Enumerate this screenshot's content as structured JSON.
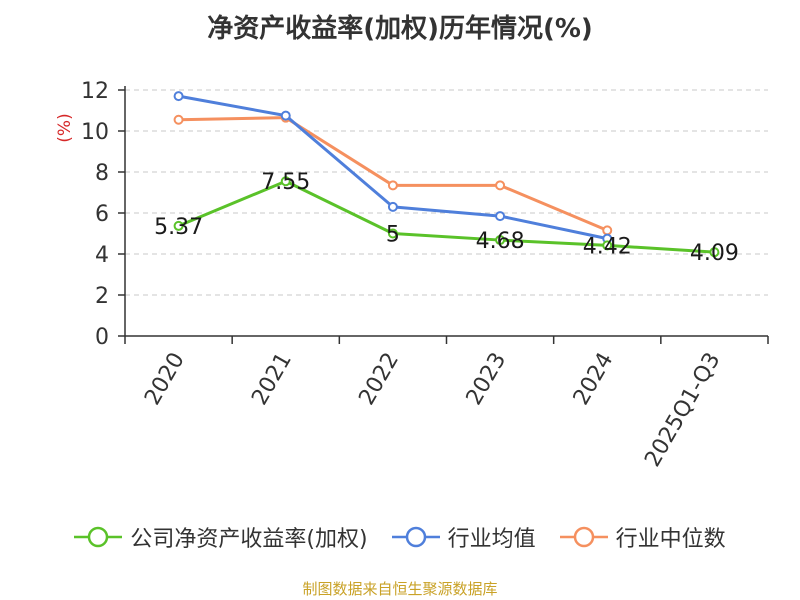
{
  "chart_data": {
    "type": "line",
    "title": "净资产收益率(加权)历年情况(%)",
    "ylabel": "(%)",
    "xlabel": "",
    "ylim": [
      0,
      12
    ],
    "yticks": [
      0,
      2,
      4,
      6,
      8,
      10,
      12
    ],
    "grid": true,
    "legend_position": "bottom",
    "categories": [
      "2020",
      "2021",
      "2022",
      "2023",
      "2024",
      "2025Q1-Q3"
    ],
    "series": [
      {
        "name": "公司净资产收益率(加权)",
        "color": "#5ac229",
        "values": [
          5.37,
          7.55,
          5,
          4.68,
          4.42,
          4.09
        ],
        "labels": [
          "5.37",
          "7.55",
          "5",
          "4.68",
          "4.42",
          "4.09"
        ]
      },
      {
        "name": "行业均值",
        "color": "#4f7fdb",
        "values": [
          11.7,
          10.75,
          6.3,
          5.85,
          4.75,
          null
        ]
      },
      {
        "name": "行业中位数",
        "color": "#f5905f",
        "values": [
          10.55,
          10.65,
          7.35,
          7.35,
          5.15,
          null
        ]
      }
    ]
  },
  "footer": "制图数据来自恒生聚源数据库"
}
